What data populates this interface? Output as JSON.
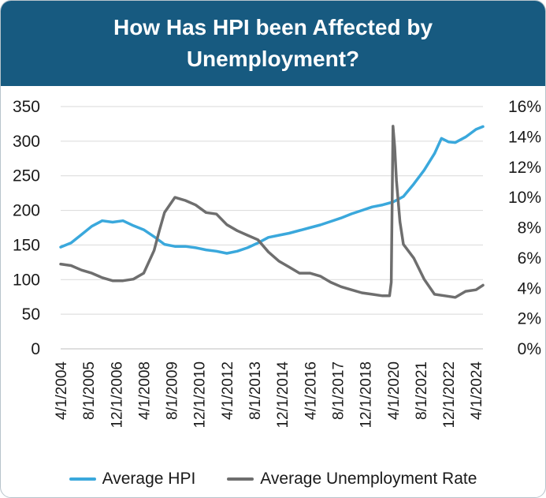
{
  "header": {
    "title": "How Has HPI been Affected by Unemployment?"
  },
  "colors": {
    "header_bg": "#175a80",
    "hpi": "#3aa8dc",
    "unemployment": "#6e6e6e"
  },
  "chart_data": {
    "type": "line",
    "title": "How Has HPI been Affected by Unemployment?",
    "xlabel": "",
    "ylabel": "",
    "grid": true,
    "legend_position": "bottom",
    "x_tick_labels": [
      "4/1/2004",
      "8/1/2005",
      "12/1/2006",
      "4/1/2008",
      "8/1/2009",
      "12/1/2010",
      "4/1/2012",
      "8/1/2013",
      "12/1/2014",
      "4/1/2016",
      "8/1/2017",
      "12/1/2018",
      "4/1/2020",
      "8/1/2021",
      "12/1/2022",
      "4/1/2024"
    ],
    "y_left": {
      "ylim": [
        0,
        350
      ],
      "ticks": [
        "0",
        "50",
        "100",
        "150",
        "200",
        "250",
        "300",
        "350"
      ]
    },
    "y_right": {
      "ylim": [
        0,
        16
      ],
      "ticks": [
        "0%",
        "2%",
        "4%",
        "6%",
        "8%",
        "10%",
        "12%",
        "14%",
        "16%"
      ]
    },
    "series": [
      {
        "name": "Average HPI",
        "axis": "left",
        "points": [
          [
            "4/1/2004",
            147
          ],
          [
            "10/1/2004",
            153
          ],
          [
            "4/1/2005",
            165
          ],
          [
            "10/1/2005",
            177
          ],
          [
            "4/1/2006",
            185
          ],
          [
            "10/1/2006",
            183
          ],
          [
            "4/1/2007",
            185
          ],
          [
            "10/1/2007",
            178
          ],
          [
            "4/1/2008",
            172
          ],
          [
            "10/1/2008",
            162
          ],
          [
            "4/1/2009",
            151
          ],
          [
            "10/1/2009",
            148
          ],
          [
            "4/1/2010",
            148
          ],
          [
            "10/1/2010",
            146
          ],
          [
            "4/1/2011",
            143
          ],
          [
            "10/1/2011",
            141
          ],
          [
            "4/1/2012",
            138
          ],
          [
            "10/1/2012",
            141
          ],
          [
            "4/1/2013",
            146
          ],
          [
            "10/1/2013",
            153
          ],
          [
            "4/1/2014",
            161
          ],
          [
            "10/1/2014",
            164
          ],
          [
            "4/1/2015",
            167
          ],
          [
            "10/1/2015",
            171
          ],
          [
            "4/1/2016",
            175
          ],
          [
            "10/1/2016",
            179
          ],
          [
            "4/1/2017",
            184
          ],
          [
            "10/1/2017",
            189
          ],
          [
            "4/1/2018",
            195
          ],
          [
            "10/1/2018",
            200
          ],
          [
            "4/1/2019",
            205
          ],
          [
            "10/1/2019",
            208
          ],
          [
            "4/1/2020",
            212
          ],
          [
            "10/1/2020",
            220
          ],
          [
            "4/1/2021",
            238
          ],
          [
            "10/1/2021",
            258
          ],
          [
            "4/1/2022",
            282
          ],
          [
            "8/1/2022",
            304
          ],
          [
            "12/1/2022",
            299
          ],
          [
            "4/1/2023",
            298
          ],
          [
            "10/1/2023",
            306
          ],
          [
            "4/1/2024",
            317
          ],
          [
            "8/1/2024",
            321
          ]
        ]
      },
      {
        "name": "Average Unemployment Rate",
        "axis": "right",
        "points": [
          [
            "4/1/2004",
            5.6
          ],
          [
            "10/1/2004",
            5.5
          ],
          [
            "4/1/2005",
            5.2
          ],
          [
            "10/1/2005",
            5.0
          ],
          [
            "4/1/2006",
            4.7
          ],
          [
            "10/1/2006",
            4.5
          ],
          [
            "4/1/2007",
            4.5
          ],
          [
            "10/1/2007",
            4.6
          ],
          [
            "4/1/2008",
            5.0
          ],
          [
            "10/1/2008",
            6.5
          ],
          [
            "1/1/2009",
            7.8
          ],
          [
            "4/1/2009",
            9.0
          ],
          [
            "10/1/2009",
            10.0
          ],
          [
            "4/1/2010",
            9.8
          ],
          [
            "10/1/2010",
            9.5
          ],
          [
            "4/1/2011",
            9.0
          ],
          [
            "10/1/2011",
            8.9
          ],
          [
            "4/1/2012",
            8.2
          ],
          [
            "10/1/2012",
            7.8
          ],
          [
            "4/1/2013",
            7.5
          ],
          [
            "10/1/2013",
            7.2
          ],
          [
            "4/1/2014",
            6.4
          ],
          [
            "10/1/2014",
            5.8
          ],
          [
            "4/1/2015",
            5.4
          ],
          [
            "10/1/2015",
            5.0
          ],
          [
            "4/1/2016",
            5.0
          ],
          [
            "10/1/2016",
            4.8
          ],
          [
            "4/1/2017",
            4.4
          ],
          [
            "10/1/2017",
            4.1
          ],
          [
            "4/1/2018",
            3.9
          ],
          [
            "10/1/2018",
            3.7
          ],
          [
            "4/1/2019",
            3.6
          ],
          [
            "10/1/2019",
            3.5
          ],
          [
            "2/1/2020",
            3.5
          ],
          [
            "3/1/2020",
            4.4
          ],
          [
            "4/1/2020",
            14.7
          ],
          [
            "5/1/2020",
            13.3
          ],
          [
            "6/1/2020",
            11.1
          ],
          [
            "8/1/2020",
            8.4
          ],
          [
            "10/1/2020",
            6.9
          ],
          [
            "4/1/2021",
            6.0
          ],
          [
            "10/1/2021",
            4.6
          ],
          [
            "4/1/2022",
            3.6
          ],
          [
            "10/1/2022",
            3.5
          ],
          [
            "4/1/2023",
            3.4
          ],
          [
            "10/1/2023",
            3.8
          ],
          [
            "4/1/2024",
            3.9
          ],
          [
            "8/1/2024",
            4.2
          ]
        ]
      }
    ]
  }
}
